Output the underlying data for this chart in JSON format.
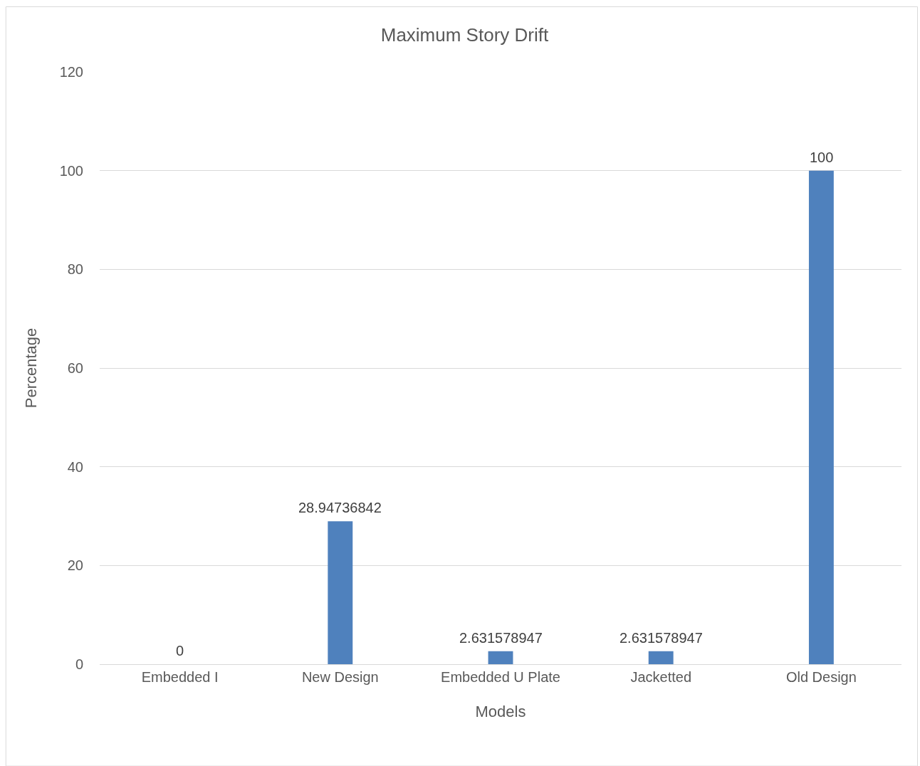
{
  "chart_data": {
    "type": "bar",
    "title": "Maximum Story Drift",
    "xlabel": "Models",
    "ylabel": "Percentage",
    "categories": [
      "Embedded I",
      "New Design",
      "Embedded U Plate",
      "Jacketted",
      "Old Design"
    ],
    "values": [
      0,
      28.94736842,
      2.631578947,
      2.631578947,
      100
    ],
    "color": "#4f81bd",
    "ylim": [
      0,
      120
    ],
    "yticks": [
      0,
      20,
      40,
      60,
      80,
      100,
      120
    ],
    "grid": "y",
    "data_labels": true,
    "legend": false
  }
}
